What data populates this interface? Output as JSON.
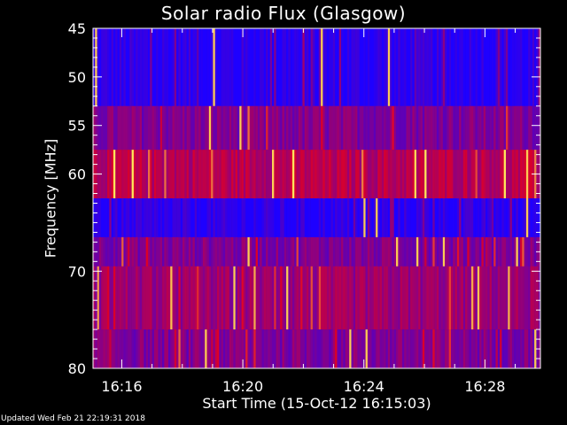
{
  "chart_data": {
    "type": "heatmap",
    "title": "Solar radio Flux (Glasgow)",
    "xlabel": "Start Time (15-Oct-12 16:15:03)",
    "ylabel": "Frequency [MHz]",
    "x_unit": "time (HH:MM)",
    "x_range": [
      "16:15:03",
      "16:29:50"
    ],
    "x_ticks": [
      "16:16",
      "16:20",
      "16:24",
      "16:28"
    ],
    "y_range": [
      45,
      80
    ],
    "y_inverted": true,
    "y_ticks": [
      45,
      50,
      55,
      60,
      70,
      80
    ],
    "colorscale": [
      "#0000ff",
      "#ff0000",
      "#ffff66"
    ],
    "frequency_bands": [
      {
        "from": 45,
        "to": 53,
        "level": "low"
      },
      {
        "from": 53,
        "to": 57.5,
        "level": "medium"
      },
      {
        "from": 57.5,
        "to": 62.5,
        "level": "high"
      },
      {
        "from": 62.5,
        "to": 66.5,
        "level": "low"
      },
      {
        "from": 66.5,
        "to": 69.5,
        "level": "medium"
      },
      {
        "from": 69.5,
        "to": 76,
        "level": "medium-high"
      },
      {
        "from": 76,
        "to": 80,
        "level": "medium"
      }
    ]
  },
  "footer": {
    "updated": "Updated Wed Feb 21 22:19:31 2018"
  }
}
